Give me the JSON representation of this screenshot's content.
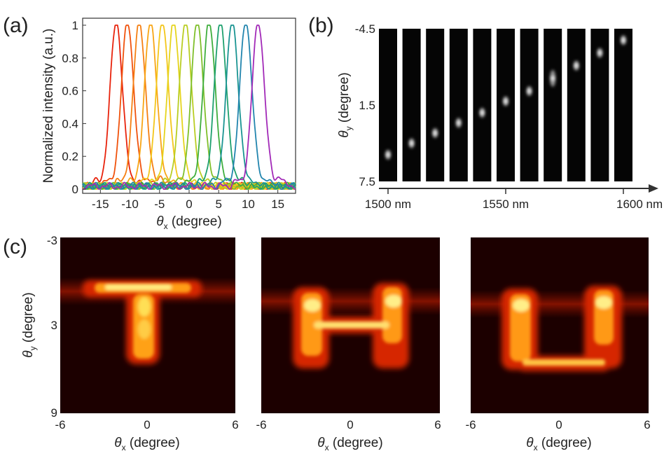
{
  "panel_labels": [
    "(a)",
    "(b)",
    "(c)"
  ],
  "chart_data": [
    {
      "id": "a",
      "type": "line",
      "xlabel_symbol": "θ",
      "xlabel_sub": "x",
      "xlabel_unit": " (degree)",
      "ylabel": "Normalized intensity (a.u.)",
      "xlim": [
        -18,
        18
      ],
      "ylim": [
        0,
        1
      ],
      "xticks": [
        "-15",
        "-10",
        "-5",
        "0",
        "5",
        "10",
        "15"
      ],
      "xtick_values": [
        -15,
        -10,
        -5,
        0,
        5,
        10,
        15
      ],
      "yticks": [
        "0",
        "0.2",
        "0.4",
        "0.6",
        "0.8",
        "1"
      ],
      "ytick_values": [
        0,
        0.2,
        0.4,
        0.6,
        0.8,
        1
      ],
      "series": [
        {
          "name": "peak-1",
          "peak": -12.3,
          "color": "#e8230c"
        },
        {
          "name": "peak-2",
          "peak": -10.4,
          "color": "#f0520c"
        },
        {
          "name": "peak-3",
          "peak": -8.4,
          "color": "#f57f12"
        },
        {
          "name": "peak-4",
          "peak": -6.5,
          "color": "#f8a515"
        },
        {
          "name": "peak-5",
          "peak": -4.5,
          "color": "#f3c61a"
        },
        {
          "name": "peak-6",
          "peak": -2.6,
          "color": "#e5d41c"
        },
        {
          "name": "peak-7",
          "peak": -0.6,
          "color": "#b9cd22"
        },
        {
          "name": "peak-8",
          "peak": 1.4,
          "color": "#7fbf2a"
        },
        {
          "name": "peak-9",
          "peak": 3.4,
          "color": "#3fae3d"
        },
        {
          "name": "peak-10",
          "peak": 5.3,
          "color": "#1ea06e"
        },
        {
          "name": "peak-11",
          "peak": 7.3,
          "color": "#1a9492"
        },
        {
          "name": "peak-12",
          "peak": 9.6,
          "color": "#2285ae"
        },
        {
          "name": "peak-13",
          "peak": 11.7,
          "color": "#a22ab8"
        }
      ]
    },
    {
      "id": "b",
      "type": "image-strip",
      "ylabel_symbol": "θ",
      "ylabel_sub": "y",
      "ylabel_unit": " (degree)",
      "ylim": [
        -4.5,
        7.5
      ],
      "yticks": [
        "-4.5",
        "1.5",
        "7.5"
      ],
      "ytick_values": [
        -4.5,
        1.5,
        7.5
      ],
      "xticks": [
        "1500 nm",
        "1550 nm",
        "1600 nm"
      ],
      "xtick_values": [
        1500,
        1550,
        1600
      ],
      "wavelengths": [
        1500,
        1510,
        1520,
        1530,
        1540,
        1550,
        1560,
        1570,
        1580,
        1590,
        1600
      ],
      "spot_theta_y": [
        5.4,
        4.5,
        3.7,
        2.9,
        2.1,
        1.2,
        0.4,
        -0.6,
        -1.6,
        -2.6,
        -3.6
      ]
    },
    {
      "id": "c",
      "type": "heatmap",
      "letters": [
        "T",
        "H",
        "U"
      ],
      "ylabel_symbol": "θ",
      "ylabel_sub": "y",
      "ylabel_unit": " (degree)",
      "xlabel_symbol": "θ",
      "xlabel_sub": "x",
      "xlabel_unit": " (degree)",
      "xlim": [
        -6,
        6
      ],
      "ylim": [
        -3,
        9
      ],
      "xticks": [
        "-6",
        "0",
        "6"
      ],
      "yticks": [
        "-3",
        "3",
        "9"
      ],
      "colormap": "hot"
    }
  ]
}
